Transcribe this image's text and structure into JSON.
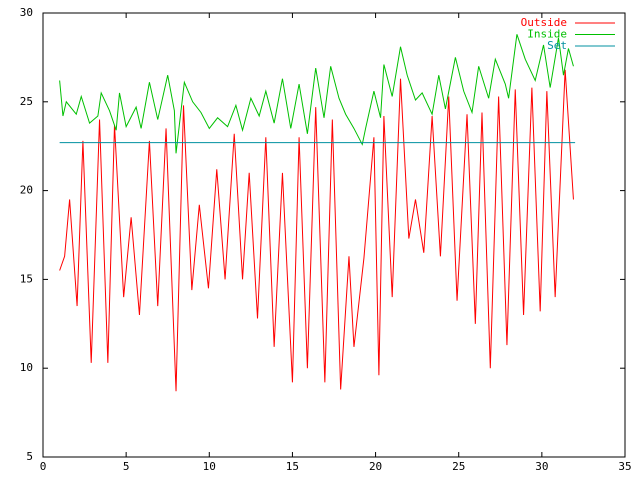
{
  "chart_data": {
    "type": "line",
    "xlim": [
      0,
      35
    ],
    "xticks": [
      0,
      5,
      10,
      15,
      20,
      25,
      30,
      35
    ],
    "ylim": [
      5,
      30
    ],
    "yticks": [
      5,
      10,
      15,
      20,
      25,
      30
    ],
    "grid": false,
    "legend": "top-right",
    "series": [
      {
        "name": "Outside",
        "color": "#ff0000",
        "x": [
          1.0,
          1.3,
          1.6,
          2.05,
          2.4,
          2.9,
          3.4,
          3.9,
          4.3,
          4.85,
          5.3,
          5.8,
          6.4,
          6.9,
          7.4,
          8.0,
          8.45,
          8.95,
          9.4,
          9.95,
          10.45,
          10.95,
          11.5,
          12.0,
          12.4,
          12.9,
          13.4,
          13.9,
          14.4,
          15.0,
          15.4,
          15.9,
          16.4,
          16.95,
          17.4,
          17.9,
          18.4,
          18.7,
          19.3,
          19.9,
          20.2,
          20.5,
          21.0,
          21.5,
          22.0,
          22.4,
          22.9,
          23.4,
          23.9,
          24.4,
          24.9,
          25.5,
          26.0,
          26.4,
          26.9,
          27.4,
          27.9,
          28.4,
          28.9,
          29.4,
          29.9,
          30.3,
          30.8,
          31.4,
          31.9
        ],
        "values": [
          15.5,
          16.3,
          19.5,
          13.5,
          22.8,
          10.3,
          24,
          10.3,
          23.7,
          14,
          18.5,
          13,
          22.8,
          13.5,
          23.5,
          8.7,
          24.8,
          14.4,
          19.2,
          14.5,
          21.2,
          15,
          23.2,
          15,
          21,
          12.8,
          23,
          11.2,
          21,
          9.2,
          23,
          10,
          24.7,
          9.2,
          24,
          8.8,
          16.3,
          11.2,
          16.2,
          23,
          9.6,
          24.2,
          14,
          26.3,
          17.3,
          19.5,
          16.5,
          24.2,
          16.3,
          25.3,
          13.8,
          24.3,
          12.5,
          24.4,
          10,
          25.3,
          11.3,
          25.7,
          13,
          25.8,
          13.2,
          25.6,
          14,
          26.8,
          19.5
        ]
      },
      {
        "name": "Inside",
        "color": "#00c000",
        "x": [
          1.0,
          1.2,
          1.4,
          2.0,
          2.3,
          2.8,
          3.3,
          3.5,
          4.0,
          4.4,
          4.6,
          5.0,
          5.6,
          5.9,
          6.4,
          6.9,
          7.5,
          7.9,
          8.0,
          8.5,
          9.0,
          9.5,
          10.0,
          10.5,
          11.1,
          11.6,
          12.0,
          12.5,
          13.0,
          13.4,
          13.9,
          14.4,
          14.9,
          15.4,
          15.9,
          16.4,
          16.9,
          17.3,
          17.8,
          18.2,
          18.7,
          19.2,
          19.4,
          19.9,
          20.3,
          20.5,
          21.0,
          21.5,
          21.9,
          22.4,
          22.8,
          23.4,
          23.8,
          24.2,
          24.8,
          25.3,
          25.8,
          26.2,
          26.8,
          27.2,
          27.8,
          28.0,
          28.5,
          29.0,
          29.6,
          30.1,
          30.5,
          31.0,
          31.3,
          31.6,
          31.9
        ],
        "values": [
          26.2,
          24.2,
          25,
          24.3,
          25.3,
          23.8,
          24.2,
          25.5,
          24.5,
          23.4,
          25.5,
          23.6,
          24.7,
          23.5,
          26.1,
          24,
          26.5,
          24.5,
          22.1,
          26.1,
          25,
          24.4,
          23.5,
          24.1,
          23.6,
          24.8,
          23.4,
          25.2,
          24.2,
          25.6,
          23.8,
          26.3,
          23.5,
          26,
          23.2,
          26.9,
          24.1,
          27,
          25.2,
          24.3,
          23.5,
          22.6,
          23.5,
          25.6,
          24.1,
          27.1,
          25.3,
          28.1,
          26.5,
          25.1,
          25.5,
          24.3,
          26.5,
          24.6,
          27.5,
          25.6,
          24.4,
          27,
          25.2,
          27.4,
          26,
          25.2,
          28.8,
          27.4,
          26.2,
          28.2,
          25.8,
          28.6,
          26.5,
          28,
          27
        ]
      },
      {
        "name": "Set",
        "color": "#0090a0",
        "x": [
          1,
          32
        ],
        "values": [
          22.7,
          22.7
        ]
      }
    ]
  }
}
